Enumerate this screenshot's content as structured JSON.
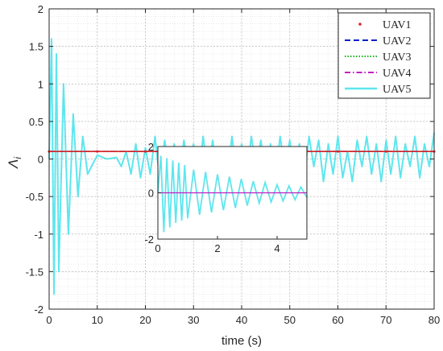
{
  "chart_data": [
    {
      "type": "line",
      "xlabel": "time (s)",
      "ylabel": "Λ",
      "ylabel_subscript": "i",
      "xlim": [
        0,
        80
      ],
      "ylim": [
        -2,
        2
      ],
      "xticks": [
        0,
        10,
        20,
        30,
        40,
        50,
        60,
        70,
        80
      ],
      "yticks": [
        -2,
        -1.5,
        -1,
        -0.5,
        0,
        0.5,
        1,
        1.5,
        2
      ],
      "grid": true,
      "minor_grid": true,
      "legend_position": "top-right",
      "series": [
        {
          "name": "UAV1",
          "style": "dotted-markers",
          "color": "#d62728",
          "x": [
            0,
            10,
            20,
            30,
            40,
            50,
            60,
            70,
            80
          ],
          "y": [
            0.1,
            0.1,
            0.1,
            0.1,
            0.1,
            0.1,
            0.1,
            0.1,
            0.1
          ]
        },
        {
          "name": "UAV2",
          "style": "dashed",
          "color": "#0a1fc9",
          "x": [
            0,
            80
          ],
          "y": [
            0.1,
            0.1
          ]
        },
        {
          "name": "UAV3",
          "style": "dotted",
          "color": "#1bb31b",
          "x": [
            0,
            80
          ],
          "y": [
            0.1,
            0.1
          ]
        },
        {
          "name": "UAV4",
          "style": "dash-dot",
          "color": "#c21ec2",
          "x": [
            0,
            80
          ],
          "y": [
            0.1,
            0.1
          ]
        },
        {
          "name": "UAV5",
          "style": "solid",
          "color": "#5ee6ee",
          "x": [
            0,
            0.5,
            1,
            1.5,
            2,
            3,
            4,
            5,
            6,
            7,
            8,
            10,
            12,
            14,
            15,
            16,
            17,
            18,
            19,
            20,
            21,
            22,
            23,
            24,
            25,
            26,
            27,
            28,
            29,
            30,
            31,
            32,
            33,
            34,
            35,
            36,
            37,
            38,
            39,
            40,
            41,
            42,
            43,
            44,
            45,
            46,
            47,
            48,
            49,
            50,
            51,
            52,
            53,
            54,
            55,
            56,
            57,
            58,
            59,
            60,
            61,
            62,
            63,
            64,
            65,
            66,
            67,
            68,
            69,
            70,
            71,
            72,
            73,
            74,
            75,
            76,
            77,
            78,
            79,
            80
          ],
          "y": [
            0,
            1.6,
            -1.8,
            1.4,
            -1.5,
            1.0,
            -1.0,
            0.6,
            -0.5,
            0.3,
            -0.2,
            0.05,
            0.0,
            0.02,
            -0.1,
            0.1,
            -0.2,
            0.2,
            -0.25,
            0.15,
            -0.2,
            0.3,
            -0.3,
            0.25,
            -0.2,
            0.2,
            -0.28,
            0.25,
            -0.1,
            0.2,
            -0.3,
            0.3,
            -0.2,
            0.25,
            -0.3,
            0.1,
            -0.25,
            0.3,
            -0.2,
            0.2,
            -0.28,
            0.3,
            -0.1,
            0.25,
            -0.3,
            0.2,
            -0.2,
            0.3,
            -0.15,
            0.25,
            -0.3,
            0.2,
            -0.25,
            0.3,
            -0.1,
            0.25,
            -0.3,
            0.2,
            -0.2,
            0.3,
            -0.25,
            0.1,
            -0.3,
            0.25,
            -0.1,
            0.3,
            -0.2,
            0.2,
            -0.3,
            0.25,
            -0.2,
            0.3,
            -0.25,
            0.2,
            -0.1,
            0.3,
            -0.25,
            0.2,
            -0.1,
            0.35
          ]
        }
      ]
    },
    {
      "type": "line",
      "role": "inset",
      "xlim": [
        0,
        5
      ],
      "ylim": [
        -2,
        2
      ],
      "xticks": [
        0,
        2,
        4
      ],
      "yticks": [
        -2,
        0,
        2
      ],
      "series": [
        {
          "name": "UAV5",
          "color": "#5ee6ee",
          "x": [
            0,
            0.1,
            0.2,
            0.3,
            0.4,
            0.5,
            0.6,
            0.7,
            0.8,
            0.9,
            1.0,
            1.2,
            1.4,
            1.6,
            1.8,
            2.0,
            2.2,
            2.4,
            2.6,
            2.8,
            3.0,
            3.2,
            3.4,
            3.6,
            3.8,
            4.0,
            4.2,
            4.4,
            4.6,
            4.8,
            5.0
          ],
          "y": [
            0,
            1.6,
            -1.7,
            1.5,
            -1.5,
            1.4,
            -1.3,
            1.3,
            -1.2,
            1.2,
            -1.1,
            1.0,
            -0.95,
            0.9,
            -0.85,
            0.8,
            -0.75,
            0.7,
            -0.65,
            0.6,
            -0.55,
            0.5,
            -0.45,
            0.45,
            -0.4,
            0.35,
            -0.35,
            0.3,
            -0.3,
            0.25,
            -0.2
          ]
        },
        {
          "name": "UAV4",
          "color": "#c21ec2",
          "x": [
            0,
            5
          ],
          "y": [
            0,
            0
          ]
        }
      ]
    }
  ],
  "colors": {
    "axis": "#262626",
    "grid": "#b9b9b9",
    "minor_grid": "#dcdcdc"
  }
}
